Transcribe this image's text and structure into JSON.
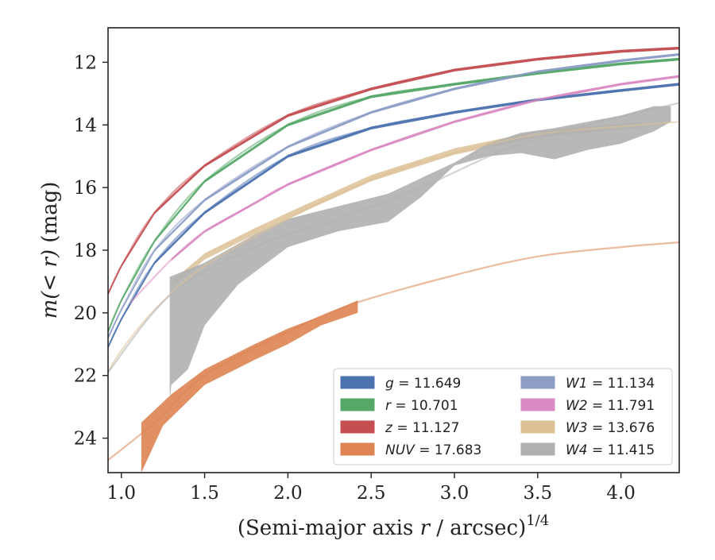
{
  "chart_data": {
    "type": "line",
    "xlabel_main": "(Semi-major axis ",
    "xlabel_var": "r",
    "xlabel_rest": " / arcsec)",
    "xlabel_exp": "1/4",
    "ylabel_pre": "m",
    "ylabel_var": "(< r)",
    "ylabel_unit": " (mag)",
    "xlim": [
      0.92,
      4.35
    ],
    "ylim": [
      25.1,
      10.9
    ],
    "y_inverted": true,
    "xticks": [
      1.0,
      1.5,
      2.0,
      2.5,
      3.0,
      3.5,
      4.0
    ],
    "xtick_labels": [
      "1.0",
      "1.5",
      "2.0",
      "2.5",
      "3.0",
      "3.5",
      "4.0"
    ],
    "yticks": [
      12,
      14,
      16,
      18,
      20,
      22,
      24
    ],
    "ytick_labels": [
      "12",
      "14",
      "16",
      "18",
      "20",
      "22",
      "24"
    ],
    "legend_location": "lower-right",
    "legend_columns": 2,
    "series": [
      {
        "name": "g = 11.649",
        "label_var": "g",
        "label_val": " = 11.649",
        "color": "#4c72b0",
        "fit": {
          "x": [
            0.92,
            1.0,
            1.2,
            1.5,
            2.0,
            2.5,
            3.0,
            3.5,
            4.0,
            4.35
          ],
          "y": [
            21.1,
            20.2,
            18.4,
            16.8,
            15.0,
            14.1,
            13.6,
            13.2,
            12.9,
            12.7
          ]
        },
        "band": {
          "x": [
            0.92,
            1.0,
            1.2,
            1.5,
            2.0,
            2.5,
            3.0,
            3.5,
            4.0,
            4.35
          ],
          "y": [
            21.1,
            20.2,
            18.4,
            16.8,
            15.0,
            14.1,
            13.6,
            13.2,
            12.9,
            12.7
          ],
          "width": 0.09
        }
      },
      {
        "name": "r = 10.701",
        "label_var": "r",
        "label_val": " = 10.701",
        "color": "#55a868",
        "fit": {
          "x": [
            0.92,
            1.0,
            1.2,
            1.5,
            2.0,
            2.5,
            3.0,
            3.5,
            4.0,
            4.35
          ],
          "y": [
            20.6,
            19.6,
            17.7,
            15.8,
            14.0,
            13.1,
            12.7,
            12.35,
            12.05,
            11.9
          ]
        },
        "band": {
          "x": [
            0.92,
            1.0,
            1.2,
            1.5,
            2.0,
            2.5,
            3.0,
            3.5,
            4.0,
            4.35
          ],
          "y": [
            20.6,
            19.6,
            17.7,
            15.8,
            14.0,
            13.1,
            12.7,
            12.35,
            12.05,
            11.9
          ],
          "width": 0.09
        }
      },
      {
        "name": "z = 11.127",
        "label_var": "z",
        "label_val": " = 11.127",
        "color": "#c44e52",
        "fit": {
          "x": [
            0.92,
            1.0,
            1.2,
            1.5,
            2.0,
            2.5,
            3.0,
            3.5,
            4.0,
            4.35
          ],
          "y": [
            19.4,
            18.5,
            16.8,
            15.3,
            13.7,
            12.85,
            12.25,
            11.9,
            11.65,
            11.55
          ]
        },
        "band": {
          "x": [
            0.92,
            1.0,
            1.2,
            1.5,
            2.0,
            2.5,
            3.0,
            3.5,
            4.0,
            4.35
          ],
          "y": [
            19.4,
            18.5,
            16.8,
            15.3,
            13.7,
            12.85,
            12.25,
            11.9,
            11.65,
            11.55
          ],
          "width": 0.09
        }
      },
      {
        "name": "NUV = 17.683",
        "label_var": "NUV",
        "label_val": " = 17.683",
        "color": "#dd8452",
        "fit": {
          "x": [
            0.92,
            1.2,
            1.5,
            2.0,
            2.4,
            3.0,
            3.5,
            4.0,
            4.35
          ],
          "y": [
            24.7,
            23.5,
            22.0,
            20.6,
            19.7,
            18.8,
            18.2,
            17.9,
            17.75
          ]
        },
        "band_upper": {
          "x": [
            1.12,
            1.3,
            1.5,
            1.8,
            2.0,
            2.2,
            2.42
          ],
          "y": [
            23.5,
            22.6,
            21.8,
            21.0,
            20.5,
            20.1,
            19.6
          ]
        },
        "band_lower": {
          "x": [
            1.12,
            1.12,
            1.25,
            1.5,
            1.8,
            2.0,
            2.2,
            2.42
          ],
          "y": [
            25.1,
            25.1,
            23.6,
            22.3,
            21.5,
            21.0,
            20.4,
            20.0
          ]
        }
      },
      {
        "name": "W1 = 11.134",
        "label_var": "W1",
        "label_val": " = 11.134",
        "color": "#8c9dc6",
        "fit": {
          "x": [
            0.92,
            1.0,
            1.2,
            1.5,
            2.0,
            2.5,
            3.0,
            3.5,
            4.0,
            4.35
          ],
          "y": [
            20.8,
            19.9,
            18.0,
            16.4,
            14.7,
            13.6,
            12.85,
            12.3,
            11.95,
            11.75
          ]
        },
        "band": {
          "x": [
            0.92,
            1.0,
            1.2,
            1.5,
            2.0,
            2.5,
            3.0,
            3.5,
            4.0,
            4.35
          ],
          "y": [
            20.8,
            19.9,
            18.0,
            16.4,
            14.7,
            13.6,
            12.85,
            12.3,
            11.95,
            11.75
          ],
          "width": 0.08
        }
      },
      {
        "name": "W2 = 11.791",
        "label_var": "W2",
        "label_val": " = 11.791",
        "color": "#da8bc3",
        "fit": {
          "x": [
            1.05,
            1.3,
            1.5,
            1.8,
            2.0,
            2.5,
            3.0,
            3.5,
            4.0,
            4.35
          ],
          "y": [
            19.7,
            18.3,
            17.4,
            16.5,
            15.9,
            14.8,
            13.9,
            13.2,
            12.7,
            12.45
          ]
        },
        "band": {
          "x": [
            1.3,
            1.5,
            1.8,
            2.0,
            2.5,
            3.0,
            3.5,
            4.0,
            4.35
          ],
          "y": [
            18.3,
            17.4,
            16.5,
            15.9,
            14.8,
            13.9,
            13.2,
            12.7,
            12.45
          ],
          "width": 0.08
        }
      },
      {
        "name": "W3 = 13.676",
        "label_var": "W3",
        "label_val": " = 13.676",
        "color": "#dcc197",
        "fit": {
          "x": [
            0.92,
            1.0,
            1.2,
            1.5,
            2.0,
            2.5,
            3.0,
            3.5,
            4.0,
            4.35
          ],
          "y": [
            21.9,
            21.2,
            19.9,
            18.5,
            17.0,
            15.75,
            14.9,
            14.3,
            14.05,
            13.9
          ]
        },
        "band": {
          "x": [
            1.3,
            1.5,
            1.8,
            2.0,
            2.5,
            3.0,
            3.5,
            4.0,
            4.12
          ],
          "y": [
            19.1,
            18.2,
            17.4,
            16.9,
            15.7,
            14.85,
            14.3,
            14.05,
            14.0
          ],
          "width": 0.2
        }
      },
      {
        "name": "W4 = 11.415",
        "label_var": "W4",
        "label_val": " = 11.415",
        "color": "#b0b0b0",
        "fit": {
          "x": [
            0.92,
            1.3,
            1.8,
            2.3,
            2.8,
            3.3,
            3.8,
            4.35
          ],
          "y": [
            21.9,
            19.4,
            17.9,
            17.0,
            16.0,
            14.8,
            14.0,
            13.3
          ]
        },
        "band_upper": {
          "x": [
            1.29,
            1.29,
            1.5,
            1.8,
            2.0,
            2.3,
            2.6,
            2.8,
            3.0,
            3.2,
            3.4,
            3.6,
            3.8,
            4.0,
            4.2,
            4.3
          ],
          "y": [
            22.8,
            18.85,
            18.4,
            17.5,
            17.0,
            16.6,
            16.2,
            15.7,
            15.2,
            14.6,
            14.25,
            14.1,
            13.9,
            13.7,
            13.4,
            13.4
          ]
        },
        "band_lower": {
          "x": [
            1.29,
            1.3,
            1.4,
            1.5,
            1.7,
            2.0,
            2.3,
            2.6,
            2.8,
            3.0,
            3.2,
            3.4,
            3.6,
            3.8,
            4.0,
            4.2,
            4.3
          ],
          "y": [
            22.8,
            22.3,
            21.8,
            20.4,
            19.1,
            17.9,
            17.4,
            17.1,
            16.3,
            15.3,
            15.0,
            14.9,
            15.1,
            14.8,
            14.6,
            14.2,
            13.9
          ]
        }
      }
    ]
  }
}
